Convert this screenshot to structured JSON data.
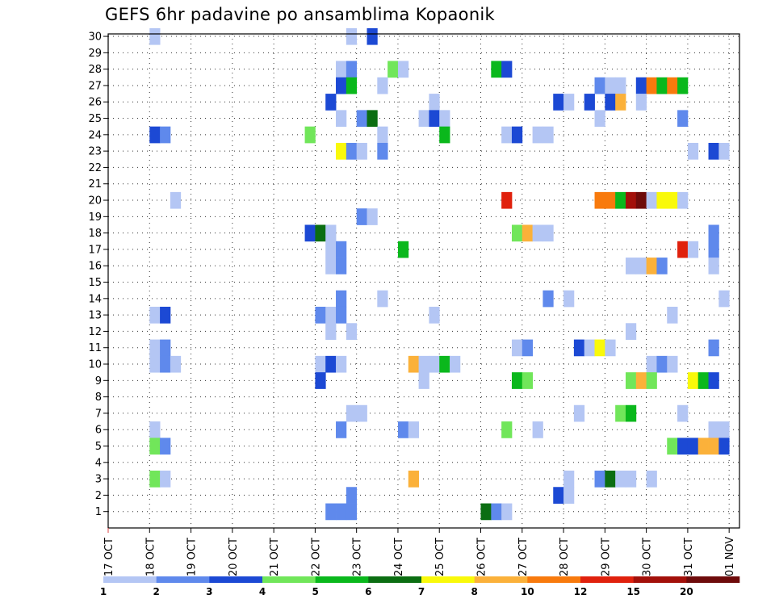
{
  "chart_data": {
    "type": "heatmap",
    "title": "GEFS 6hr padavine po ansamblima Kopaonik",
    "xlabel": "",
    "ylabel": "",
    "x_ticks": [
      "17 OCT",
      "18 OCT",
      "19 OCT",
      "20 OCT",
      "21 OCT",
      "22 OCT",
      "23 OCT",
      "24 OCT",
      "25 OCT",
      "26 OCT",
      "27 OCT",
      "28 OCT",
      "29 OCT",
      "30 OCT",
      "31 OCT",
      "01 NOV"
    ],
    "x_range_days": [
      0,
      15.25
    ],
    "y_ticks": [
      "1",
      "2",
      "3",
      "4",
      "5",
      "6",
      "7",
      "8",
      "9",
      "10",
      "11",
      "12",
      "13",
      "14",
      "15",
      "16",
      "17",
      "18",
      "19",
      "20",
      "21",
      "22",
      "23",
      "24",
      "25",
      "26",
      "27",
      "28",
      "29",
      "30"
    ],
    "y_range": [
      0,
      30
    ],
    "legend": {
      "labels": [
        "1",
        "2",
        "3",
        "4",
        "5",
        "6",
        "7",
        "8",
        "10",
        "12",
        "15",
        "20"
      ],
      "colors": [
        "#b4c6f4",
        "#5f89ec",
        "#1c49d4",
        "#71e65a",
        "#0ab81c",
        "#0b6e12",
        "#f9f90a",
        "#fbb13a",
        "#f87a0d",
        "#e0210d",
        "#a3100a",
        "#6e0b0b"
      ]
    },
    "cells": [
      [
        30,
        1.0,
        0
      ],
      [
        30,
        5.75,
        0
      ],
      [
        30,
        6.25,
        2
      ],
      [
        28,
        5.5,
        0
      ],
      [
        28,
        5.75,
        1
      ],
      [
        28,
        6.75,
        3
      ],
      [
        28,
        7.0,
        0
      ],
      [
        28,
        9.25,
        4
      ],
      [
        28,
        9.5,
        2
      ],
      [
        27,
        5.5,
        2
      ],
      [
        27,
        5.75,
        4
      ],
      [
        27,
        6.5,
        0
      ],
      [
        27,
        11.75,
        1
      ],
      [
        27,
        12.0,
        0
      ],
      [
        27,
        12.25,
        0
      ],
      [
        27,
        12.75,
        2
      ],
      [
        27,
        13.0,
        8
      ],
      [
        27,
        13.25,
        4
      ],
      [
        27,
        13.5,
        8
      ],
      [
        27,
        13.75,
        4
      ],
      [
        26,
        5.25,
        2
      ],
      [
        26,
        7.75,
        0
      ],
      [
        26,
        10.75,
        2
      ],
      [
        26,
        11.0,
        0
      ],
      [
        26,
        11.5,
        2
      ],
      [
        26,
        12.0,
        2
      ],
      [
        26,
        12.25,
        7
      ],
      [
        26,
        12.75,
        0
      ],
      [
        25,
        5.5,
        0
      ],
      [
        25,
        6.0,
        1
      ],
      [
        25,
        6.25,
        5
      ],
      [
        25,
        7.5,
        0
      ],
      [
        25,
        7.75,
        2
      ],
      [
        25,
        8.0,
        0
      ],
      [
        25,
        11.75,
        0
      ],
      [
        25,
        13.75,
        1
      ],
      [
        24,
        1.0,
        2
      ],
      [
        24,
        1.25,
        1
      ],
      [
        24,
        4.75,
        3
      ],
      [
        24,
        6.5,
        0
      ],
      [
        24,
        8.0,
        4
      ],
      [
        24,
        9.5,
        0
      ],
      [
        24,
        9.75,
        2
      ],
      [
        24,
        10.25,
        0
      ],
      [
        24,
        10.5,
        0
      ],
      [
        23,
        5.5,
        6
      ],
      [
        23,
        5.75,
        1
      ],
      [
        23,
        6.0,
        0
      ],
      [
        23,
        6.5,
        1
      ],
      [
        23,
        14.0,
        0
      ],
      [
        23,
        14.5,
        2
      ],
      [
        23,
        14.75,
        0
      ],
      [
        20,
        1.5,
        0
      ],
      [
        20,
        9.5,
        9
      ],
      [
        20,
        11.75,
        8
      ],
      [
        20,
        12.0,
        8
      ],
      [
        20,
        12.25,
        4
      ],
      [
        20,
        12.5,
        10
      ],
      [
        20,
        12.75,
        11
      ],
      [
        20,
        13.0,
        0
      ],
      [
        20,
        13.25,
        6
      ],
      [
        20,
        13.5,
        6
      ],
      [
        20,
        13.75,
        0
      ],
      [
        19,
        6.0,
        1
      ],
      [
        19,
        6.25,
        0
      ],
      [
        18,
        4.75,
        2
      ],
      [
        18,
        5.0,
        5
      ],
      [
        18,
        5.25,
        0
      ],
      [
        18,
        9.75,
        3
      ],
      [
        18,
        10.0,
        7
      ],
      [
        18,
        10.25,
        0
      ],
      [
        18,
        10.5,
        0
      ],
      [
        18,
        14.5,
        1
      ],
      [
        17,
        5.25,
        0
      ],
      [
        17,
        5.5,
        1
      ],
      [
        17,
        7.0,
        4
      ],
      [
        17,
        13.75,
        9
      ],
      [
        17,
        14.0,
        0
      ],
      [
        17,
        14.5,
        1
      ],
      [
        16,
        5.25,
        0
      ],
      [
        16,
        5.5,
        1
      ],
      [
        16,
        12.5,
        0
      ],
      [
        16,
        12.75,
        0
      ],
      [
        16,
        13.0,
        7
      ],
      [
        16,
        13.25,
        1
      ],
      [
        16,
        14.5,
        0
      ],
      [
        14,
        5.5,
        1
      ],
      [
        14,
        6.5,
        0
      ],
      [
        14,
        10.5,
        1
      ],
      [
        14,
        11.0,
        0
      ],
      [
        14,
        14.75,
        0
      ],
      [
        13,
        1.0,
        0
      ],
      [
        13,
        1.25,
        2
      ],
      [
        13,
        5.0,
        1
      ],
      [
        13,
        5.25,
        0
      ],
      [
        13,
        5.5,
        1
      ],
      [
        13,
        7.75,
        0
      ],
      [
        13,
        13.5,
        0
      ],
      [
        12,
        5.25,
        0
      ],
      [
        12,
        5.75,
        0
      ],
      [
        12,
        12.5,
        0
      ],
      [
        11,
        1.0,
        0
      ],
      [
        11,
        1.25,
        1
      ],
      [
        11,
        9.75,
        0
      ],
      [
        11,
        10.0,
        1
      ],
      [
        11,
        11.25,
        2
      ],
      [
        11,
        11.5,
        0
      ],
      [
        11,
        11.75,
        6
      ],
      [
        11,
        12.0,
        0
      ],
      [
        11,
        14.5,
        1
      ],
      [
        10,
        1.0,
        0
      ],
      [
        10,
        1.25,
        1
      ],
      [
        10,
        1.5,
        0
      ],
      [
        10,
        5.0,
        0
      ],
      [
        10,
        5.25,
        2
      ],
      [
        10,
        5.5,
        0
      ],
      [
        10,
        7.25,
        7
      ],
      [
        10,
        7.5,
        0
      ],
      [
        10,
        7.75,
        0
      ],
      [
        10,
        8.0,
        4
      ],
      [
        10,
        8.25,
        0
      ],
      [
        10,
        13.0,
        0
      ],
      [
        10,
        13.25,
        1
      ],
      [
        10,
        13.5,
        0
      ],
      [
        9,
        5.0,
        2
      ],
      [
        9,
        7.5,
        0
      ],
      [
        9,
        9.75,
        4
      ],
      [
        9,
        10.0,
        3
      ],
      [
        9,
        12.5,
        3
      ],
      [
        9,
        12.75,
        7
      ],
      [
        9,
        13.0,
        3
      ],
      [
        9,
        14.0,
        6
      ],
      [
        9,
        14.25,
        4
      ],
      [
        9,
        14.5,
        2
      ],
      [
        7,
        5.75,
        0
      ],
      [
        7,
        6.0,
        0
      ],
      [
        7,
        11.25,
        0
      ],
      [
        7,
        12.25,
        3
      ],
      [
        7,
        12.5,
        4
      ],
      [
        7,
        13.75,
        0
      ],
      [
        6,
        1.0,
        0
      ],
      [
        6,
        5.5,
        1
      ],
      [
        6,
        7.0,
        1
      ],
      [
        6,
        7.25,
        0
      ],
      [
        6,
        9.5,
        3
      ],
      [
        6,
        10.25,
        0
      ],
      [
        6,
        14.5,
        0
      ],
      [
        6,
        14.75,
        0
      ],
      [
        5,
        1.0,
        3
      ],
      [
        5,
        1.25,
        1
      ],
      [
        5,
        13.5,
        3
      ],
      [
        5,
        13.75,
        2
      ],
      [
        5,
        14.0,
        2
      ],
      [
        5,
        14.25,
        7
      ],
      [
        5,
        14.5,
        7
      ],
      [
        5,
        14.75,
        2
      ],
      [
        3,
        1.0,
        3
      ],
      [
        3,
        1.25,
        0
      ],
      [
        3,
        7.25,
        7
      ],
      [
        3,
        11.0,
        0
      ],
      [
        3,
        11.75,
        1
      ],
      [
        3,
        12.0,
        5
      ],
      [
        3,
        12.25,
        0
      ],
      [
        3,
        12.5,
        0
      ],
      [
        3,
        13.0,
        0
      ],
      [
        2,
        5.75,
        1
      ],
      [
        2,
        10.75,
        2
      ],
      [
        2,
        11.0,
        0
      ],
      [
        1,
        5.25,
        1
      ],
      [
        1,
        5.5,
        1
      ],
      [
        1,
        5.75,
        1
      ],
      [
        1,
        9.0,
        5
      ],
      [
        1,
        9.25,
        1
      ],
      [
        1,
        9.5,
        0
      ]
    ]
  }
}
